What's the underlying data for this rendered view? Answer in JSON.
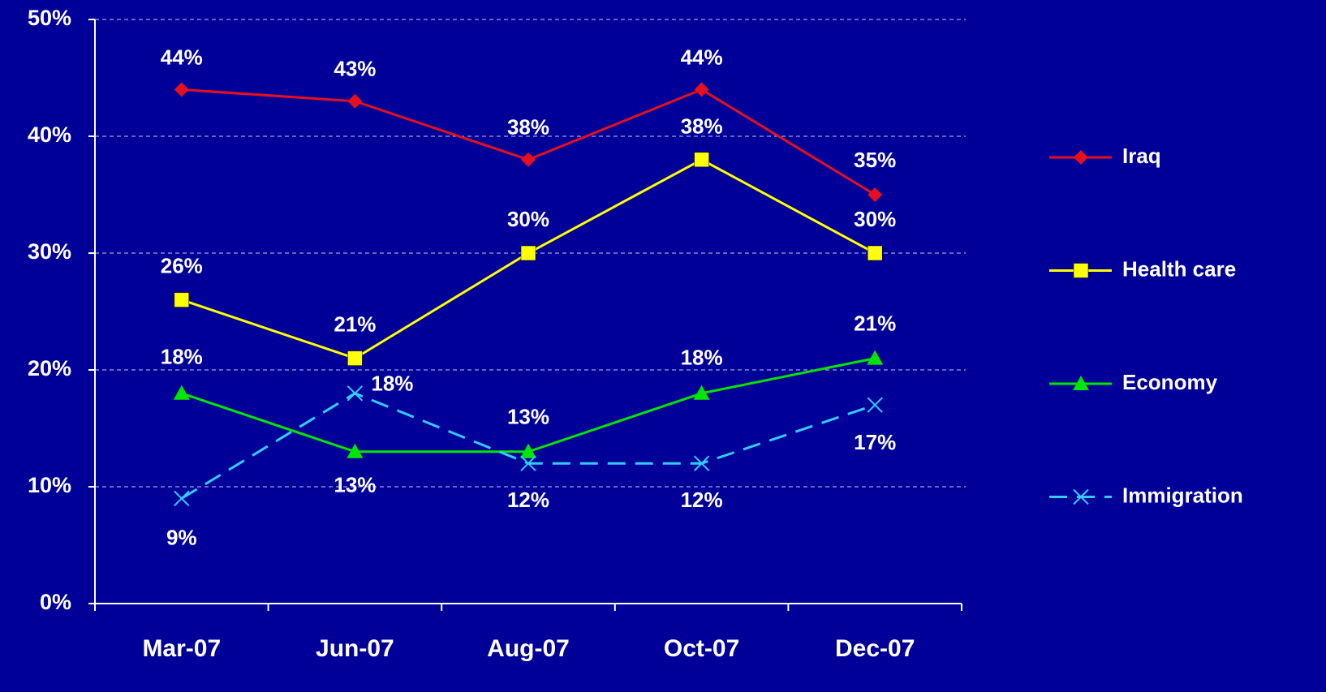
{
  "chart_data": {
    "type": "line",
    "categories": [
      "Mar-07",
      "Jun-07",
      "Aug-07",
      "Oct-07",
      "Dec-07"
    ],
    "series": [
      {
        "name": "Iraq",
        "color": "#e60f1e",
        "marker": "diamond",
        "dash": false,
        "values": [
          44,
          43,
          38,
          44,
          35
        ],
        "value_labels": [
          "44%",
          "43%",
          "38%",
          "44%",
          "35%"
        ]
      },
      {
        "name": "Health care",
        "color": "#ffff00",
        "marker": "square",
        "dash": false,
        "values": [
          26,
          21,
          30,
          38,
          30
        ],
        "value_labels": [
          "26%",
          "21%",
          "30%",
          "38%",
          "30%"
        ]
      },
      {
        "name": "Economy",
        "color": "#00e600",
        "marker": "triangle",
        "dash": false,
        "values": [
          18,
          13,
          13,
          18,
          21
        ],
        "value_labels": [
          "18%",
          "13%",
          "13%",
          "18%",
          "21%"
        ]
      },
      {
        "name": "Immigration",
        "color": "#33ccff",
        "marker": "x",
        "dash": true,
        "values": [
          9,
          18,
          12,
          12,
          17
        ],
        "value_labels": [
          "9%",
          "18%",
          "12%",
          "12%",
          "17%"
        ]
      }
    ],
    "ylim": [
      0,
      50
    ],
    "yticks": [
      {
        "value": 0,
        "label": "0%"
      },
      {
        "value": 10,
        "label": "10%"
      },
      {
        "value": 20,
        "label": "20%"
      },
      {
        "value": 30,
        "label": "30%"
      },
      {
        "value": 40,
        "label": "40%"
      },
      {
        "value": 50,
        "label": "50%"
      }
    ],
    "grid": true,
    "legend": "right"
  }
}
